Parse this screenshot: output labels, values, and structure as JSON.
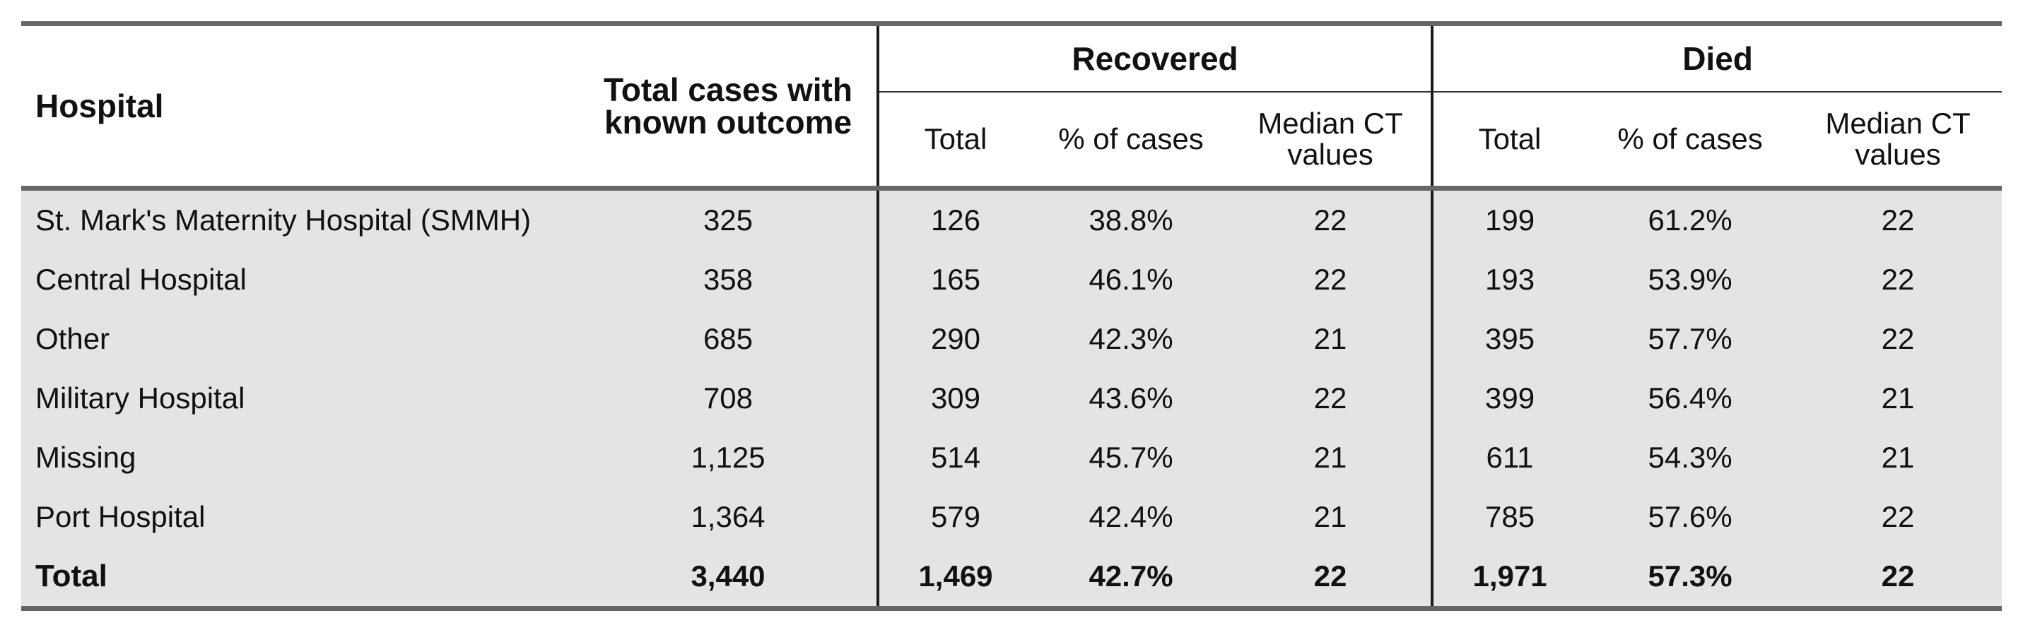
{
  "table": {
    "headers": {
      "hospital": "Hospital",
      "total_cases": "Total cases with known outcome",
      "recovered": "Recovered",
      "died": "Died",
      "sub_total": "Total",
      "sub_pct": "% of cases",
      "sub_median": "Median CT values"
    },
    "rows": [
      {
        "hospital": "St. Mark's Maternity Hospital (SMMH)",
        "total": "325",
        "rec_total": "126",
        "rec_pct": "38.8%",
        "rec_median": "22",
        "died_total": "199",
        "died_pct": "61.2%",
        "died_median": "22"
      },
      {
        "hospital": "Central Hospital",
        "total": "358",
        "rec_total": "165",
        "rec_pct": "46.1%",
        "rec_median": "22",
        "died_total": "193",
        "died_pct": "53.9%",
        "died_median": "22"
      },
      {
        "hospital": "Other",
        "total": "685",
        "rec_total": "290",
        "rec_pct": "42.3%",
        "rec_median": "21",
        "died_total": "395",
        "died_pct": "57.7%",
        "died_median": "22"
      },
      {
        "hospital": "Military Hospital",
        "total": "708",
        "rec_total": "309",
        "rec_pct": "43.6%",
        "rec_median": "22",
        "died_total": "399",
        "died_pct": "56.4%",
        "died_median": "21"
      },
      {
        "hospital": "Missing",
        "total": "1,125",
        "rec_total": "514",
        "rec_pct": "45.7%",
        "rec_median": "21",
        "died_total": "611",
        "died_pct": "54.3%",
        "died_median": "21"
      },
      {
        "hospital": "Port Hospital",
        "total": "1,364",
        "rec_total": "579",
        "rec_pct": "42.4%",
        "rec_median": "21",
        "died_total": "785",
        "died_pct": "57.6%",
        "died_median": "22"
      }
    ],
    "total_row": {
      "hospital": "Total",
      "total": "3,440",
      "rec_total": "1,469",
      "rec_pct": "42.7%",
      "rec_median": "22",
      "died_total": "1,971",
      "died_pct": "57.3%",
      "died_median": "22"
    }
  }
}
